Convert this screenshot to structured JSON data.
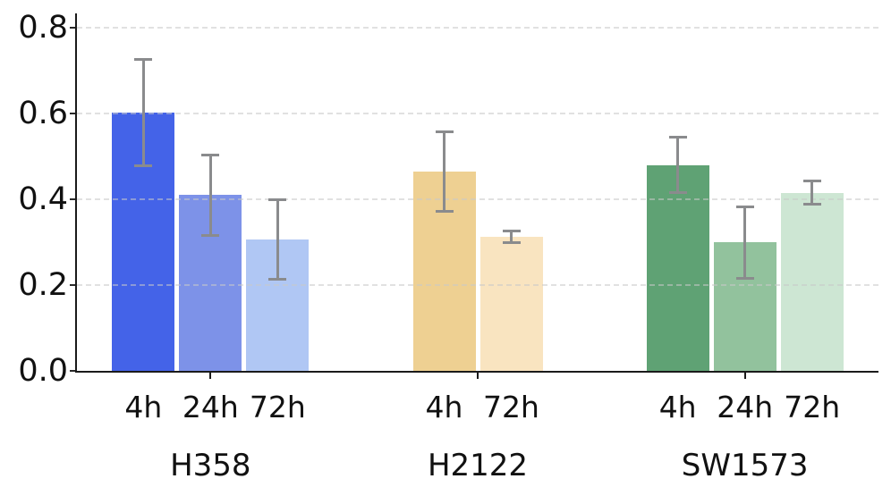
{
  "chart_data": {
    "type": "bar",
    "variant": "grouped-with-error-bars",
    "title": "",
    "xlabel": "",
    "ylabel": "",
    "ylim": [
      0,
      0.83
    ],
    "yticks": [
      0,
      0.2,
      0.4,
      0.6,
      0.8
    ],
    "ytick_labels": [
      "0.0",
      "0.2",
      "0.4",
      "0.6",
      "0.8"
    ],
    "grid": {
      "horizontal": true,
      "style": "dashed",
      "color": "#e6e6e6",
      "drawn_over_bars": true
    },
    "legend": "none",
    "axis_color": "#1a1a1a",
    "error_bar_color": "#8a8b8d",
    "categories": [
      "H358",
      "H2122",
      "SW1573"
    ],
    "groups": [
      {
        "label": "H358",
        "bars": [
          {
            "label": "4h",
            "value": 0.603,
            "error": 0.124,
            "color": "#4463e8"
          },
          {
            "label": "24h",
            "value": 0.41,
            "error": 0.094,
            "color": "#7d92e8"
          },
          {
            "label": "72h",
            "value": 0.307,
            "error": 0.093,
            "color": "#b0c7f4"
          }
        ]
      },
      {
        "label": "H2122",
        "bars": [
          {
            "label": "4h",
            "value": 0.464,
            "error": 0.093,
            "color": "#eed092"
          },
          {
            "label": "72h",
            "value": 0.313,
            "error": 0.014,
            "color": "#f9e4c0"
          }
        ]
      },
      {
        "label": "SW1573",
        "bars": [
          {
            "label": "4h",
            "value": 0.48,
            "error": 0.064,
            "color": "#5fa274"
          },
          {
            "label": "24h",
            "value": 0.299,
            "error": 0.084,
            "color": "#92c29d"
          },
          {
            "label": "72h",
            "value": 0.415,
            "error": 0.027,
            "color": "#cde6d3"
          }
        ]
      }
    ]
  }
}
